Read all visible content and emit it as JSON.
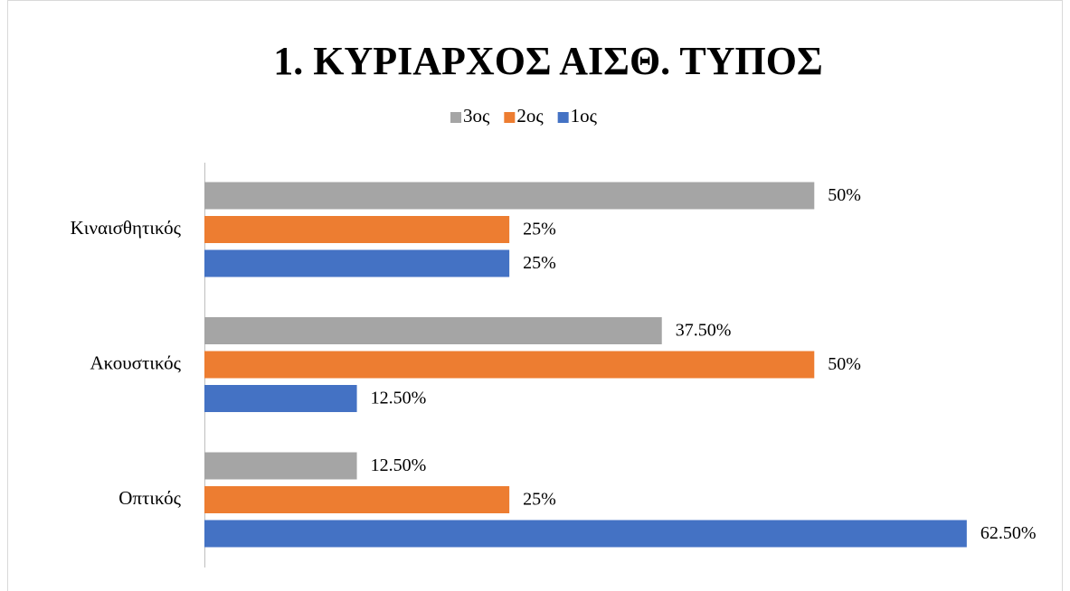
{
  "chart_data": {
    "type": "bar",
    "orientation": "horizontal",
    "title": "1. ΚΥΡΙΑΡΧΟΣ ΑΙΣΘ. ΤΥΠΟΣ",
    "categories": [
      "Οπτικός",
      "Ακουστικός",
      "Κιναισθητικός"
    ],
    "series": [
      {
        "name": "1ος",
        "color": "#4472c4",
        "values": [
          62.5,
          12.5,
          25
        ],
        "value_labels": [
          "62.50%",
          "12.50%",
          "25%"
        ]
      },
      {
        "name": "2ος",
        "color": "#ed7d31",
        "values": [
          25,
          50,
          25
        ],
        "value_labels": [
          "25%",
          "50%",
          "25%"
        ]
      },
      {
        "name": "3ος",
        "color": "#a5a5a5",
        "values": [
          12.5,
          37.5,
          50
        ],
        "value_labels": [
          "12.50%",
          "37.50%",
          "50%"
        ]
      }
    ],
    "xlim": [
      0,
      70
    ],
    "legend": "top"
  }
}
